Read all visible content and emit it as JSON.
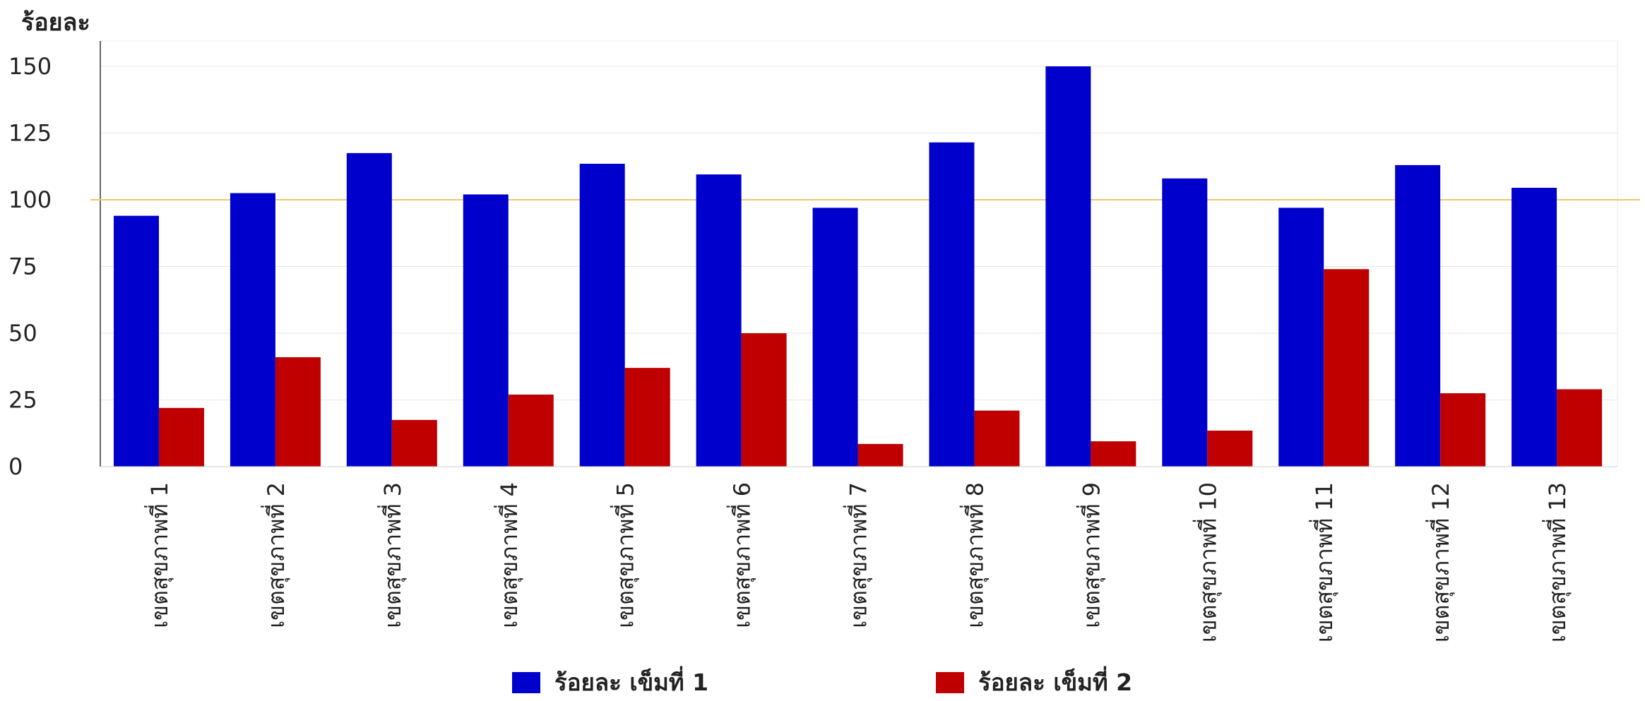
{
  "chart_data": {
    "type": "bar",
    "title": "",
    "xlabel": "",
    "ylabel": "ร้อยละ",
    "ylim": [
      0,
      160
    ],
    "yticks": [
      0,
      25,
      50,
      75,
      100,
      125,
      150
    ],
    "grid": true,
    "legend_position": "bottom",
    "reference_line": {
      "value": 100,
      "color": "#f2c46d"
    },
    "categories": [
      "เขตสุขภาพที่ 1",
      "เขตสุขภาพที่ 2",
      "เขตสุขภาพที่ 3",
      "เขตสุขภาพที่ 4",
      "เขตสุขภาพที่ 5",
      "เขตสุขภาพที่ 6",
      "เขตสุขภาพที่ 7",
      "เขตสุขภาพที่ 8",
      "เขตสุขภาพที่ 9",
      "เขตสุขภาพที่ 10",
      "เขตสุขภาพที่ 11",
      "เขตสุขภาพที่ 12",
      "เขตสุขภาพที่ 13"
    ],
    "series": [
      {
        "name": "ร้อยละ เข็มที่ 1",
        "color": "#0000cc",
        "values": [
          94,
          102.5,
          117.5,
          102,
          113.5,
          109.5,
          97,
          121.5,
          150,
          108,
          97,
          113,
          104.5
        ]
      },
      {
        "name": "ร้อยละ เข็มที่ 2",
        "color": "#c00000",
        "values": [
          22,
          41,
          17.5,
          27,
          37,
          50,
          8.5,
          21,
          9.5,
          13.5,
          74,
          27.5,
          29
        ]
      }
    ]
  }
}
